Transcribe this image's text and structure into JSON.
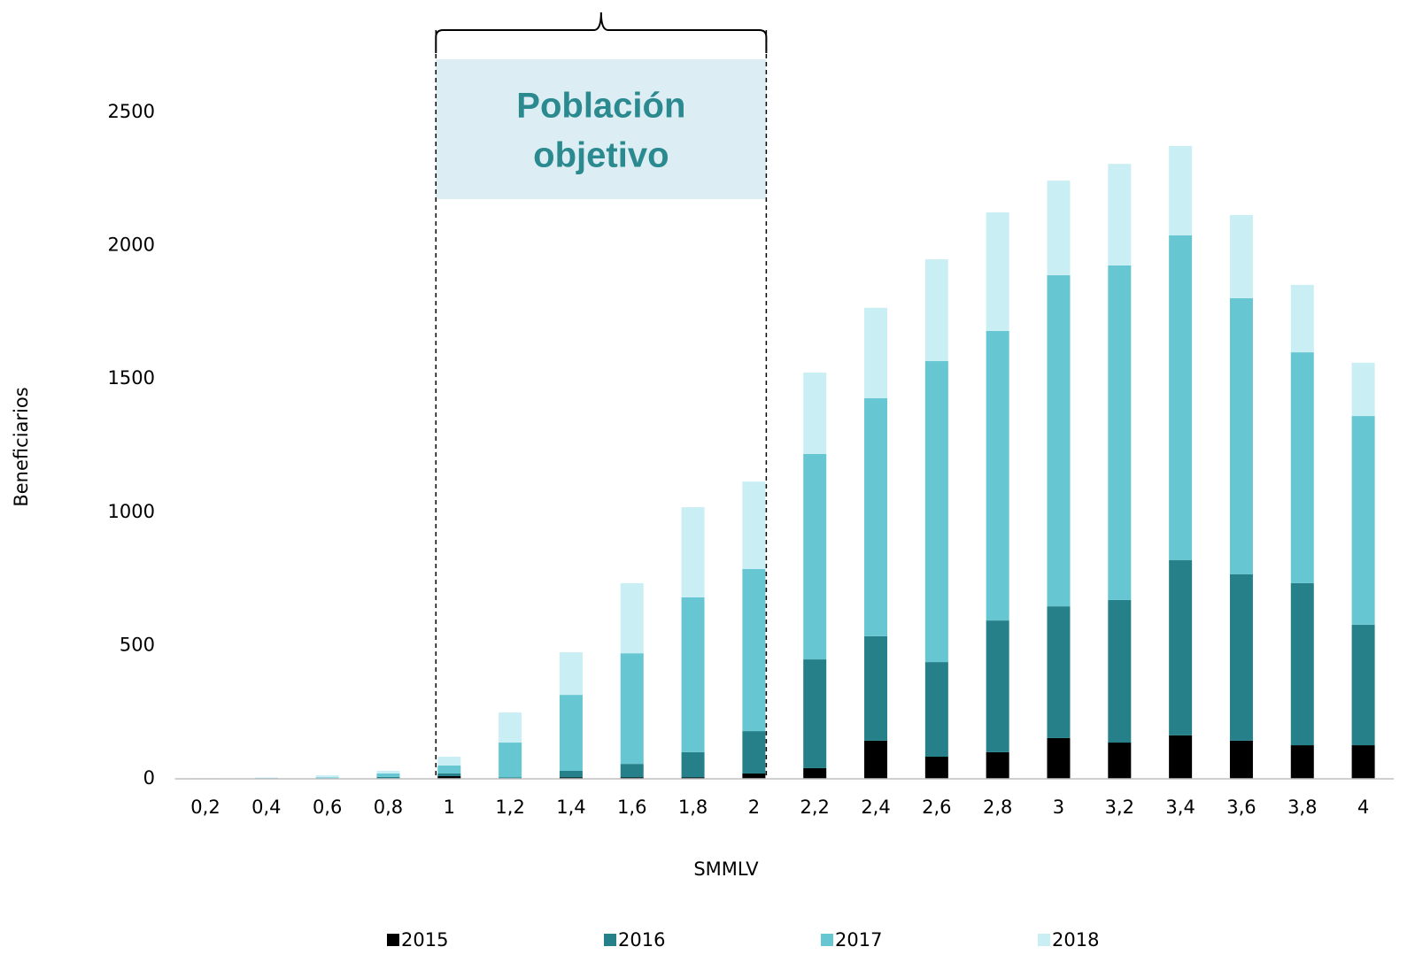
{
  "chart_data": {
    "type": "stacked_bar",
    "categories": [
      "0,2",
      "0,4",
      "0,6",
      "0,8",
      "1",
      "1,2",
      "1,4",
      "1,6",
      "1,8",
      "2",
      "2,2",
      "2,4",
      "2,6",
      "2,8",
      "3",
      "3,2",
      "3,4",
      "3,6",
      "3,8",
      "4"
    ],
    "series": [
      {
        "name": "2015",
        "color": "#000000",
        "values": [
          0,
          0,
          0,
          1,
          10,
          2,
          5,
          5,
          5,
          20,
          40,
          143,
          83,
          100,
          153,
          136,
          163,
          143,
          126,
          126
        ]
      },
      {
        "name": "2016",
        "color": "#26808a",
        "values": [
          0,
          1,
          1,
          6,
          10,
          3,
          25,
          51,
          95,
          159,
          408,
          392,
          355,
          494,
          494,
          535,
          657,
          624,
          608,
          452
        ]
      },
      {
        "name": "2017",
        "color": "#66c6d2",
        "values": [
          1,
          2,
          4,
          13,
          30,
          131,
          285,
          415,
          581,
          608,
          771,
          893,
          1129,
          1086,
          1242,
          1255,
          1219,
          1036,
          866,
          783
        ]
      },
      {
        "name": "2018",
        "color": "#c9eff4",
        "values": [
          1,
          2,
          8,
          10,
          33,
          113,
          160,
          263,
          338,
          328,
          305,
          339,
          382,
          445,
          355,
          381,
          335,
          312,
          253,
          200
        ]
      }
    ],
    "ylim": [
      0,
      2500
    ],
    "yticks": [
      0,
      500,
      1000,
      1500,
      2000,
      2500
    ],
    "xlabel": "SMMLV",
    "ylabel": "Beneficiarios",
    "annotation": [
      "Población",
      "objetivo"
    ],
    "legend": "bottom"
  }
}
